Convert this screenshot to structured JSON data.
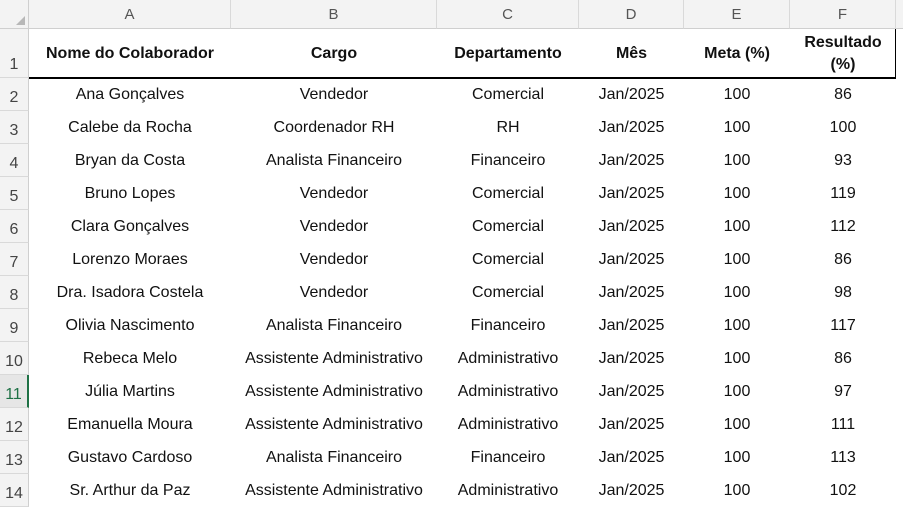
{
  "columns": [
    "A",
    "B",
    "C",
    "D",
    "E",
    "F"
  ],
  "rows": [
    "1",
    "2",
    "3",
    "4",
    "5",
    "6",
    "7",
    "8",
    "9",
    "10",
    "11",
    "12",
    "13",
    "14"
  ],
  "active_row": "11",
  "header": {
    "nome": "Nome do Colaborador",
    "cargo": "Cargo",
    "departamento": "Departamento",
    "mes": "Mês",
    "meta": "Meta (%)",
    "resultado_line1": "Resultado",
    "resultado_line2": "(%)"
  },
  "records": [
    {
      "nome": "Ana Gonçalves",
      "cargo": "Vendedor",
      "departamento": "Comercial",
      "mes": "Jan/2025",
      "meta": "100",
      "resultado": "86"
    },
    {
      "nome": "Calebe da Rocha",
      "cargo": "Coordenador RH",
      "departamento": "RH",
      "mes": "Jan/2025",
      "meta": "100",
      "resultado": "100"
    },
    {
      "nome": "Bryan da Costa",
      "cargo": "Analista Financeiro",
      "departamento": "Financeiro",
      "mes": "Jan/2025",
      "meta": "100",
      "resultado": "93"
    },
    {
      "nome": "Bruno Lopes",
      "cargo": "Vendedor",
      "departamento": "Comercial",
      "mes": "Jan/2025",
      "meta": "100",
      "resultado": "119"
    },
    {
      "nome": "Clara Gonçalves",
      "cargo": "Vendedor",
      "departamento": "Comercial",
      "mes": "Jan/2025",
      "meta": "100",
      "resultado": "112"
    },
    {
      "nome": "Lorenzo Moraes",
      "cargo": "Vendedor",
      "departamento": "Comercial",
      "mes": "Jan/2025",
      "meta": "100",
      "resultado": "86"
    },
    {
      "nome": "Dra. Isadora Costela",
      "cargo": "Vendedor",
      "departamento": "Comercial",
      "mes": "Jan/2025",
      "meta": "100",
      "resultado": "98"
    },
    {
      "nome": "Olivia Nascimento",
      "cargo": "Analista Financeiro",
      "departamento": "Financeiro",
      "mes": "Jan/2025",
      "meta": "100",
      "resultado": "117"
    },
    {
      "nome": "Rebeca Melo",
      "cargo": "Assistente Administrativo",
      "departamento": "Administrativo",
      "mes": "Jan/2025",
      "meta": "100",
      "resultado": "86"
    },
    {
      "nome": "Júlia Martins",
      "cargo": "Assistente Administrativo",
      "departamento": "Administrativo",
      "mes": "Jan/2025",
      "meta": "100",
      "resultado": "97"
    },
    {
      "nome": "Emanuella Moura",
      "cargo": "Assistente Administrativo",
      "departamento": "Administrativo",
      "mes": "Jan/2025",
      "meta": "100",
      "resultado": "111"
    },
    {
      "nome": "Gustavo Cardoso",
      "cargo": "Analista Financeiro",
      "departamento": "Financeiro",
      "mes": "Jan/2025",
      "meta": "100",
      "resultado": "113"
    },
    {
      "nome": "Sr. Arthur da Paz",
      "cargo": "Assistente Administrativo",
      "departamento": "Administrativo",
      "mes": "Jan/2025",
      "meta": "100",
      "resultado": "102"
    }
  ]
}
